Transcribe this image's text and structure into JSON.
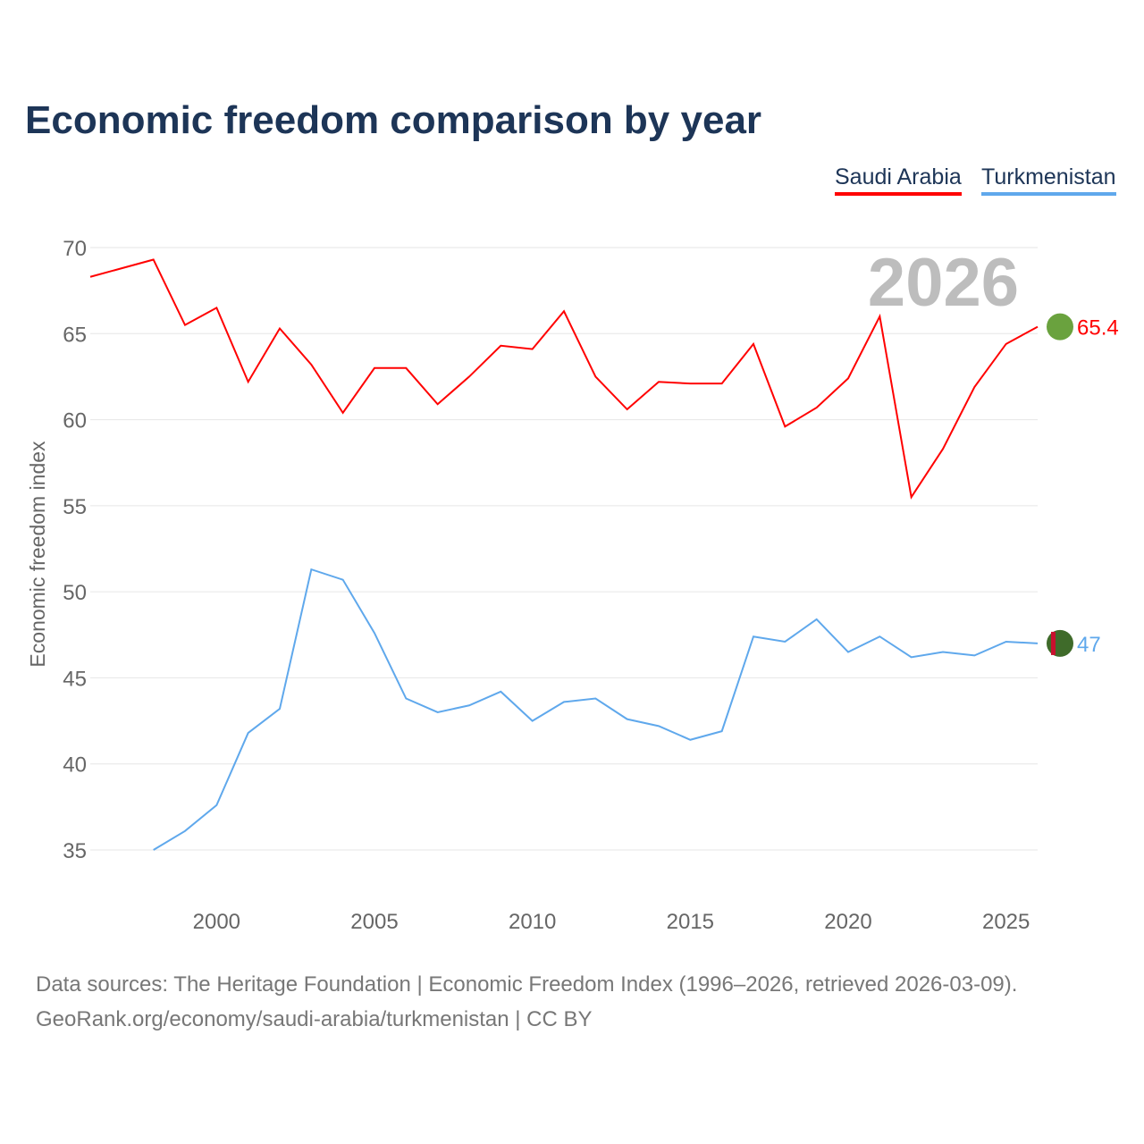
{
  "title": "Economic freedom comparison by year",
  "footer": {
    "line1": "Data sources: The Heritage Foundation | Economic Freedom Index (1996–2026, retrieved 2026-03-09).",
    "line2": "GeoRank.org/economy/saudi-arabia/turkmenistan | CC BY"
  },
  "chart_data": {
    "type": "line",
    "title": "Economic freedom comparison by year",
    "ylabel": "Economic freedom index",
    "xlabel": "",
    "year_label": "2026",
    "xlim": [
      1996,
      2026
    ],
    "ylim": [
      32,
      72
    ],
    "yticks": [
      35,
      40,
      45,
      50,
      55,
      60,
      65,
      70
    ],
    "xticks": [
      2000,
      2005,
      2010,
      2015,
      2020,
      2025
    ],
    "grid": true,
    "legend": "top-right",
    "series": [
      {
        "name": "Saudi Arabia",
        "color": "#ff0000",
        "end_label": "65.4",
        "flag": "saudi-arabia-flag-icon",
        "x": [
          1996,
          1997,
          1998,
          1999,
          2000,
          2001,
          2002,
          2003,
          2004,
          2005,
          2006,
          2007,
          2008,
          2009,
          2010,
          2011,
          2012,
          2013,
          2014,
          2015,
          2016,
          2017,
          2018,
          2019,
          2020,
          2021,
          2022,
          2023,
          2024,
          2025,
          2026
        ],
        "values": [
          68.3,
          68.8,
          69.3,
          65.5,
          66.5,
          62.2,
          65.3,
          63.2,
          60.4,
          63.0,
          63.0,
          60.9,
          62.5,
          64.3,
          64.1,
          66.3,
          62.5,
          60.6,
          62.2,
          62.1,
          62.1,
          64.4,
          59.6,
          60.7,
          62.4,
          66.0,
          55.5,
          58.3,
          61.9,
          64.4,
          65.4
        ]
      },
      {
        "name": "Turkmenistan",
        "color": "#5fa8ec",
        "end_label": "47",
        "flag": "turkmenistan-flag-icon",
        "x": [
          1998,
          1999,
          2000,
          2001,
          2002,
          2003,
          2004,
          2005,
          2006,
          2007,
          2008,
          2009,
          2010,
          2011,
          2012,
          2013,
          2014,
          2015,
          2016,
          2017,
          2018,
          2019,
          2020,
          2021,
          2022,
          2023,
          2024,
          2025,
          2026
        ],
        "values": [
          35.0,
          36.1,
          37.6,
          41.8,
          43.2,
          51.3,
          50.7,
          47.6,
          43.8,
          43.0,
          43.4,
          44.2,
          42.5,
          43.6,
          43.8,
          42.6,
          42.2,
          41.4,
          41.9,
          47.4,
          47.1,
          48.4,
          46.5,
          47.4,
          46.2,
          46.5,
          46.3,
          47.1,
          47.0
        ]
      }
    ]
  }
}
